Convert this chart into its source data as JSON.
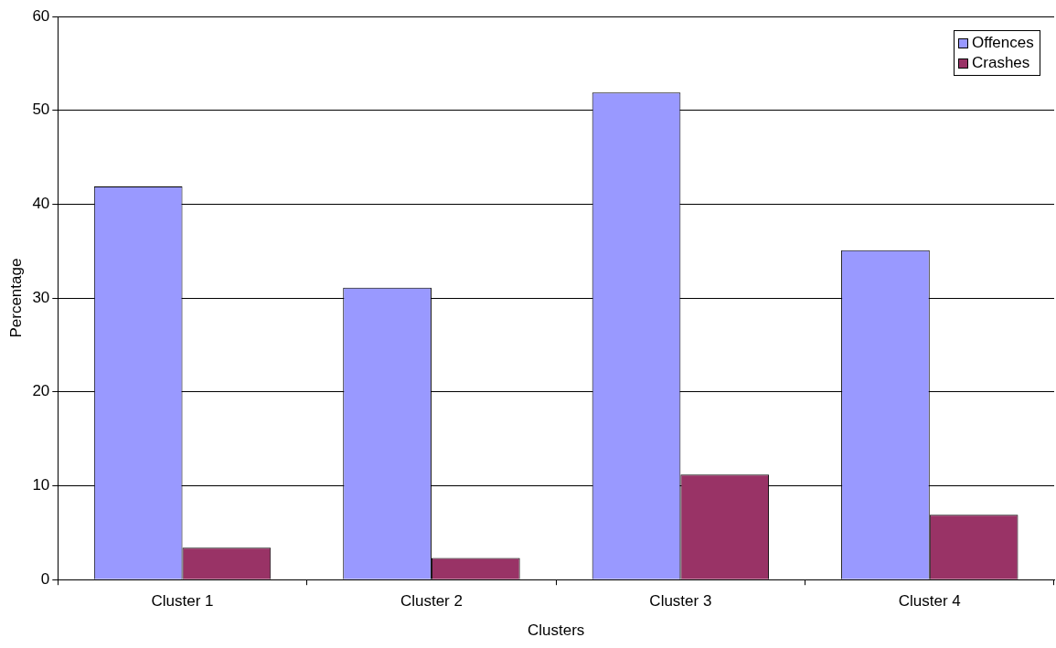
{
  "chart_data": {
    "type": "bar",
    "xlabel": "Clusters",
    "ylabel": "Percentage",
    "categories": [
      "Cluster 1",
      "Cluster 2",
      "Cluster 3",
      "Cluster 4"
    ],
    "series": [
      {
        "name": "Offences",
        "color": "#9999ff",
        "values": [
          41.9,
          31.1,
          51.9,
          35.1
        ]
      },
      {
        "name": "Crashes",
        "color": "#993366",
        "values": [
          3.4,
          2.3,
          11.2,
          6.9
        ]
      }
    ],
    "ylim": [
      0,
      60
    ],
    "yticks": [
      0,
      10,
      20,
      30,
      40,
      50,
      60
    ],
    "grid": "y",
    "legend": "top right"
  }
}
